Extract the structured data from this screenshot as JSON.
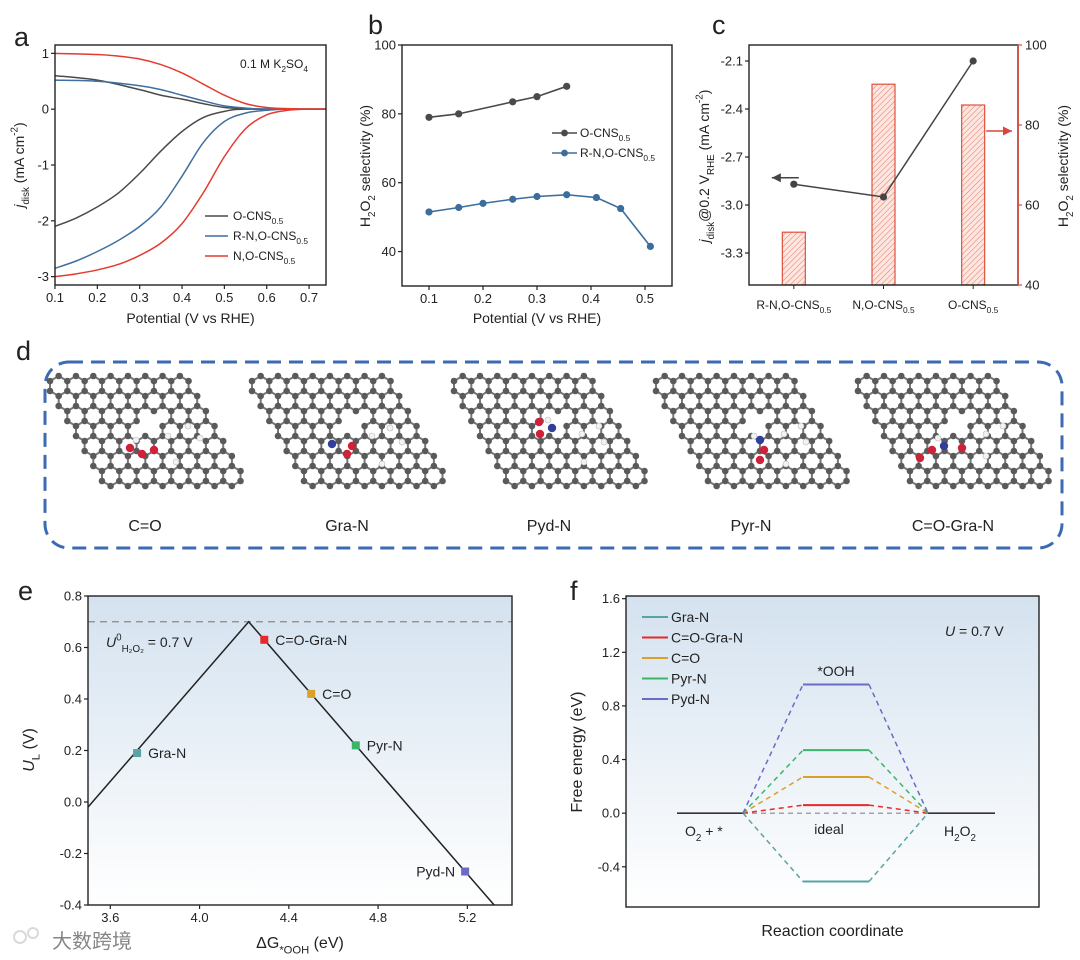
{
  "panel_labels": [
    "a",
    "b",
    "c",
    "d",
    "e",
    "f"
  ],
  "watermark": "大数跨境",
  "colors": {
    "o_cns": "#4a4a4a",
    "rn_o_cns": "#3f6f9f",
    "n_o_cns": "#e53a2f",
    "axis_right": "#d9463a",
    "bar_fill": "#fbe3dc",
    "dashed_box": "#3d6bb3",
    "carbon": "#5a5a5a",
    "oxygen": "#d0213a",
    "nitrogen": "#2f3f9a",
    "hydrogen": "#f2f2f2",
    "gra_n": "#5aa3a3",
    "c_o_gra_n": "#e8282b",
    "c_o": "#d9a02a",
    "pyr_n": "#3bb56a",
    "pyd_n": "#6b6bc4"
  },
  "chart_data": [
    {
      "panel": "a",
      "type": "line",
      "title": "",
      "xlabel": [
        [
          "Potential (V vs RHE)",
          ""
        ]
      ],
      "ylabel": [
        [
          "j",
          "i"
        ],
        [
          "disk",
          "sub"
        ],
        [
          " (mA cm",
          ""
        ],
        [
          "-2",
          "sup"
        ],
        [
          ")",
          ""
        ]
      ],
      "xlim": [
        0.1,
        0.74
      ],
      "ylim": [
        -3.15,
        1.15
      ],
      "xticks": [
        "0.1",
        "0.2",
        "0.3",
        "0.4",
        "0.5",
        "0.6",
        "0.7"
      ],
      "yticks": [
        "1",
        "0",
        "-1",
        "-2",
        "-3"
      ],
      "annotation": [
        [
          "0.1 M K",
          ""
        ],
        [
          "2",
          "sub"
        ],
        [
          "SO",
          ""
        ],
        [
          "4",
          "sub"
        ]
      ],
      "legend": "bottom-right",
      "series": [
        {
          "label": [
            [
              "O-CNS",
              ""
            ],
            [
              "0.5",
              "sub"
            ]
          ],
          "color": "#4a4a4a",
          "disk": [
            [
              0.1,
              -2.1
            ],
            [
              0.15,
              -1.95
            ],
            [
              0.2,
              -1.75
            ],
            [
              0.25,
              -1.5
            ],
            [
              0.3,
              -1.15
            ],
            [
              0.35,
              -0.75
            ],
            [
              0.4,
              -0.4
            ],
            [
              0.45,
              -0.15
            ],
            [
              0.5,
              -0.04
            ],
            [
              0.55,
              0
            ],
            [
              0.74,
              0
            ]
          ],
          "ring": [
            [
              0.1,
              0.6
            ],
            [
              0.2,
              0.52
            ],
            [
              0.3,
              0.35
            ],
            [
              0.35,
              0.25
            ],
            [
              0.4,
              0.18
            ],
            [
              0.45,
              0.1
            ],
            [
              0.5,
              0.03
            ],
            [
              0.55,
              0.01
            ],
            [
              0.6,
              0
            ],
            [
              0.74,
              0
            ]
          ]
        },
        {
          "label": [
            [
              "R-N,O-CNS",
              ""
            ],
            [
              "0.5",
              "sub"
            ]
          ],
          "color": "#3f6f9f",
          "disk": [
            [
              0.1,
              -2.85
            ],
            [
              0.15,
              -2.72
            ],
            [
              0.2,
              -2.55
            ],
            [
              0.25,
              -2.35
            ],
            [
              0.3,
              -2.1
            ],
            [
              0.35,
              -1.75
            ],
            [
              0.4,
              -1.2
            ],
            [
              0.45,
              -0.6
            ],
            [
              0.5,
              -0.22
            ],
            [
              0.55,
              -0.07
            ],
            [
              0.6,
              -0.02
            ],
            [
              0.65,
              0
            ],
            [
              0.74,
              0
            ]
          ],
          "ring": [
            [
              0.1,
              0.52
            ],
            [
              0.2,
              0.5
            ],
            [
              0.3,
              0.42
            ],
            [
              0.35,
              0.35
            ],
            [
              0.4,
              0.25
            ],
            [
              0.45,
              0.15
            ],
            [
              0.5,
              0.06
            ],
            [
              0.55,
              0.02
            ],
            [
              0.6,
              0
            ],
            [
              0.74,
              0
            ]
          ]
        },
        {
          "label": [
            [
              "N,O-CNS",
              ""
            ],
            [
              "0.5",
              "sub"
            ]
          ],
          "color": "#e53a2f",
          "disk": [
            [
              0.1,
              -3.0
            ],
            [
              0.15,
              -2.95
            ],
            [
              0.2,
              -2.88
            ],
            [
              0.25,
              -2.78
            ],
            [
              0.3,
              -2.62
            ],
            [
              0.35,
              -2.4
            ],
            [
              0.4,
              -2.05
            ],
            [
              0.45,
              -1.5
            ],
            [
              0.5,
              -0.85
            ],
            [
              0.55,
              -0.35
            ],
            [
              0.6,
              -0.1
            ],
            [
              0.65,
              -0.02
            ],
            [
              0.7,
              0
            ],
            [
              0.74,
              0
            ]
          ],
          "ring": [
            [
              0.1,
              1.0
            ],
            [
              0.2,
              0.98
            ],
            [
              0.25,
              0.95
            ],
            [
              0.3,
              0.9
            ],
            [
              0.35,
              0.8
            ],
            [
              0.4,
              0.65
            ],
            [
              0.45,
              0.45
            ],
            [
              0.5,
              0.25
            ],
            [
              0.55,
              0.1
            ],
            [
              0.6,
              0.03
            ],
            [
              0.65,
              0.01
            ],
            [
              0.74,
              0
            ]
          ]
        }
      ]
    },
    {
      "panel": "b",
      "type": "line",
      "title": "",
      "xlabel": [
        [
          "Potential (V vs RHE)",
          ""
        ]
      ],
      "ylabel": [
        [
          "H",
          ""
        ],
        [
          "2",
          "sub"
        ],
        [
          "O",
          ""
        ],
        [
          "2",
          "sub"
        ],
        [
          " selectivity (%)",
          ""
        ]
      ],
      "xlim": [
        0.05,
        0.55
      ],
      "ylim": [
        30,
        100
      ],
      "xticks": [
        "0.1",
        "0.2",
        "0.3",
        "0.4",
        "0.5"
      ],
      "yticks": [
        "40",
        "60",
        "80",
        "100"
      ],
      "legend": "center-right",
      "series": [
        {
          "label": [
            [
              "O-CNS",
              ""
            ],
            [
              "0.5",
              "sub"
            ]
          ],
          "color": "#4a4a4a",
          "x": [
            0.1,
            0.155,
            0.255,
            0.3,
            0.355
          ],
          "y": [
            79,
            80,
            83.5,
            85,
            88
          ]
        },
        {
          "label": [
            [
              "R-N,O-CNS",
              ""
            ],
            [
              "0.5",
              "sub"
            ]
          ],
          "color": "#3b6e9c",
          "x": [
            0.1,
            0.155,
            0.2,
            0.255,
            0.3,
            0.355,
            0.41,
            0.455,
            0.51
          ],
          "y": [
            51.5,
            52.8,
            54,
            55.2,
            56,
            56.5,
            55.7,
            52.5,
            41.5
          ]
        }
      ]
    },
    {
      "panel": "c",
      "type": "bar",
      "title": "",
      "categories": [
        [
          [
            "R-N,O-CNS",
            ""
          ],
          [
            "0.5",
            "sub"
          ]
        ],
        [
          [
            "N,O-CNS",
            ""
          ],
          [
            "0.5",
            "sub"
          ]
        ],
        [
          [
            "O-CNS",
            ""
          ],
          [
            "0.5",
            "sub"
          ]
        ]
      ],
      "ylabel": [
        [
          "j",
          "i"
        ],
        [
          "disk",
          "sub"
        ],
        [
          "@0.2 V",
          ""
        ],
        [
          "RHE",
          "sub"
        ],
        [
          " (mA cm",
          ""
        ],
        [
          "-2",
          "sup"
        ],
        [
          ")",
          ""
        ]
      ],
      "ylabel_right": [
        [
          "H",
          ""
        ],
        [
          "2",
          "sub"
        ],
        [
          "O",
          ""
        ],
        [
          "2",
          "sub"
        ],
        [
          " selectivity (%)",
          ""
        ]
      ],
      "ylim": [
        -3.5,
        -2.0
      ],
      "ylim_right": [
        40,
        100
      ],
      "yticks": [
        "-2.1",
        "-2.4",
        "-2.7",
        "-3.0",
        "-3.3"
      ],
      "yticks_right": [
        "40",
        "60",
        "80",
        "100"
      ],
      "line_values": [
        -2.87,
        -2.95,
        -2.1
      ],
      "bar_values": [
        53.2,
        90.2,
        85
      ]
    },
    {
      "panel": "e",
      "type": "scatter",
      "title": "",
      "xlabel": [
        [
          "ΔG",
          ""
        ],
        [
          "*OOH",
          "sub"
        ],
        [
          " (eV)",
          ""
        ]
      ],
      "ylabel": [
        [
          "U",
          "i"
        ],
        [
          "L",
          "sub"
        ],
        [
          " (V)",
          ""
        ]
      ],
      "xlim": [
        3.5,
        5.4
      ],
      "ylim": [
        -0.4,
        0.8
      ],
      "xticks": [
        "3.6",
        "4.0",
        "4.4",
        "4.8",
        "5.2"
      ],
      "yticks": [
        "0.8",
        "0.6",
        "0.4",
        "0.2",
        "0.0",
        "-0.2",
        "-0.4"
      ],
      "reference_line": 0.7,
      "annotation": [
        [
          "U",
          "i"
        ],
        [
          "0",
          "sup"
        ],
        [
          "H₂O₂",
          "sub"
        ],
        [
          "  =  0.7 V",
          ""
        ]
      ],
      "volcano": [
        [
          3.5,
          -0.02
        ],
        [
          4.22,
          0.7
        ],
        [
          5.32,
          -0.4
        ]
      ],
      "points": [
        {
          "label": "Gra-N",
          "x": 3.72,
          "y": 0.19,
          "color": "#5aa3a3"
        },
        {
          "label": "C=O-Gra-N",
          "x": 4.29,
          "y": 0.63,
          "color": "#e8282b"
        },
        {
          "label": "C=O",
          "x": 4.5,
          "y": 0.42,
          "color": "#d9a02a"
        },
        {
          "label": "Pyr-N",
          "x": 4.7,
          "y": 0.22,
          "color": "#3bb56a"
        },
        {
          "label": "Pyd-N",
          "x": 5.19,
          "y": -0.27,
          "color": "#6b6bc4"
        }
      ]
    },
    {
      "panel": "f",
      "type": "line",
      "title": "",
      "xlabel": [
        [
          "Reaction coordinate",
          ""
        ]
      ],
      "ylabel": [
        [
          "Free energy (eV)",
          ""
        ]
      ],
      "ylim": [
        -0.7,
        1.62
      ],
      "yticks": [
        "1.6",
        "1.2",
        "0.8",
        "0.4",
        "0.0",
        "-0.4"
      ],
      "annotation": [
        [
          "U",
          "i"
        ],
        [
          " = 0.7 V",
          ""
        ]
      ],
      "stages": {
        "start": [
          [
            "O",
            ""
          ],
          [
            "2",
            "sub"
          ],
          [
            " + *",
            ""
          ]
        ],
        "middle": [
          [
            "*OOH",
            ""
          ]
        ],
        "ideal": [
          [
            "ideal",
            ""
          ]
        ],
        "end": [
          [
            "H",
            ""
          ],
          [
            "2",
            "sub"
          ],
          [
            "O",
            ""
          ],
          [
            "2",
            "sub"
          ]
        ]
      },
      "legend": "top-left",
      "series": [
        {
          "label": "Gra-N",
          "value": -0.51,
          "color": "#5aa3a3"
        },
        {
          "label": "C=O-Gra-N",
          "value": 0.06,
          "color": "#e8282b"
        },
        {
          "label": "C=O",
          "value": 0.27,
          "color": "#d9a02a"
        },
        {
          "label": "Pyr-N",
          "value": 0.47,
          "color": "#3bb56a"
        },
        {
          "label": "Pyd-N",
          "value": 0.96,
          "color": "#6b6bc4"
        }
      ]
    }
  ],
  "panel_d": {
    "structures": [
      "C=O",
      "Gra-N",
      "Pyd-N",
      "Pyr-N",
      "C=O-Gra-N"
    ]
  }
}
